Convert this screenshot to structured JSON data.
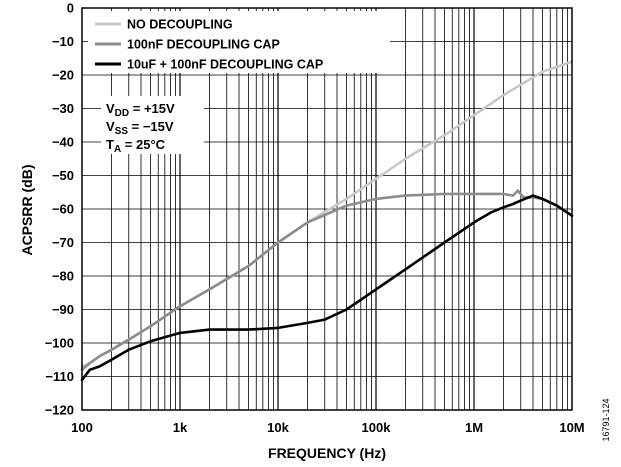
{
  "chart_data": {
    "type": "line",
    "title": "",
    "xlabel": "FREQUENCY (Hz)",
    "ylabel": "ACPSRR (dB)",
    "x_scale": "log",
    "xlim": [
      100,
      10000000
    ],
    "ylim": [
      -120,
      0
    ],
    "x_ticks": [
      100,
      1000,
      10000,
      100000,
      1000000,
      10000000
    ],
    "x_tick_labels": [
      "100",
      "1k",
      "10k",
      "100k",
      "1M",
      "10M"
    ],
    "y_ticks": [
      0,
      -10,
      -20,
      -30,
      -40,
      -50,
      -60,
      -70,
      -80,
      -90,
      -100,
      -110,
      -120
    ],
    "y_tick_labels": [
      "0",
      "−10",
      "−20",
      "−30",
      "−40",
      "−50",
      "−60",
      "−70",
      "−80",
      "−90",
      "−100",
      "−110",
      "−120"
    ],
    "grid": true,
    "legend_position": "top-left",
    "series": [
      {
        "name": "NO DECOUPLING",
        "color": "#c8c8c8",
        "x": [
          100,
          120,
          150,
          200,
          300,
          500,
          1000,
          2000,
          5000,
          10000,
          20000,
          50000,
          100000,
          200000,
          500000,
          1000000,
          2000000,
          5000000,
          10000000
        ],
        "y": [
          -107,
          -106,
          -104,
          -102,
          -99,
          -95,
          -89,
          -84,
          -77,
          -70,
          -64,
          -57,
          -51,
          -45,
          -38,
          -32,
          -26,
          -19,
          -16
        ]
      },
      {
        "name": "100nF DECOUPLING CAP",
        "color": "#8c8c8c",
        "x": [
          100,
          120,
          150,
          200,
          300,
          500,
          1000,
          2000,
          5000,
          10000,
          20000,
          50000,
          100000,
          200000,
          500000,
          1000000,
          2000000,
          2500000,
          2800000,
          3200000,
          4000000,
          5000000,
          7000000,
          10000000
        ],
        "y": [
          -108,
          -106,
          -104,
          -102,
          -99,
          -95,
          -89,
          -84,
          -77,
          -70,
          -64,
          -59,
          -57,
          -56,
          -55.5,
          -55.5,
          -55.5,
          -56,
          -54.5,
          -56.5,
          -56.5,
          -57,
          -59,
          -62
        ]
      },
      {
        "name": "10uF + 100nF DECOUPLING CAP",
        "color": "#000000",
        "x": [
          100,
          120,
          150,
          200,
          300,
          500,
          1000,
          2000,
          3000,
          5000,
          10000,
          20000,
          30000,
          50000,
          100000,
          200000,
          500000,
          1000000,
          1500000,
          2000000,
          2500000,
          3000000,
          4000000,
          5000000,
          7000000,
          10000000
        ],
        "y": [
          -111,
          -108,
          -107,
          -105,
          -102,
          -99.5,
          -97,
          -96,
          -96,
          -96,
          -95.5,
          -94,
          -93,
          -90,
          -84,
          -78,
          -70,
          -64,
          -61,
          -59.5,
          -58.5,
          -57.5,
          -56,
          -57,
          -59,
          -62
        ]
      }
    ],
    "annotations": {
      "vdd_main": "V",
      "vdd_sub": "DD",
      "vdd_value": " = +15V",
      "vss_main": "V",
      "vss_sub": "SS",
      "vss_value": " = −15V",
      "ta_main": "T",
      "ta_sub": "A",
      "ta_value": " = 25°C"
    },
    "figure_id": "16791-124"
  }
}
